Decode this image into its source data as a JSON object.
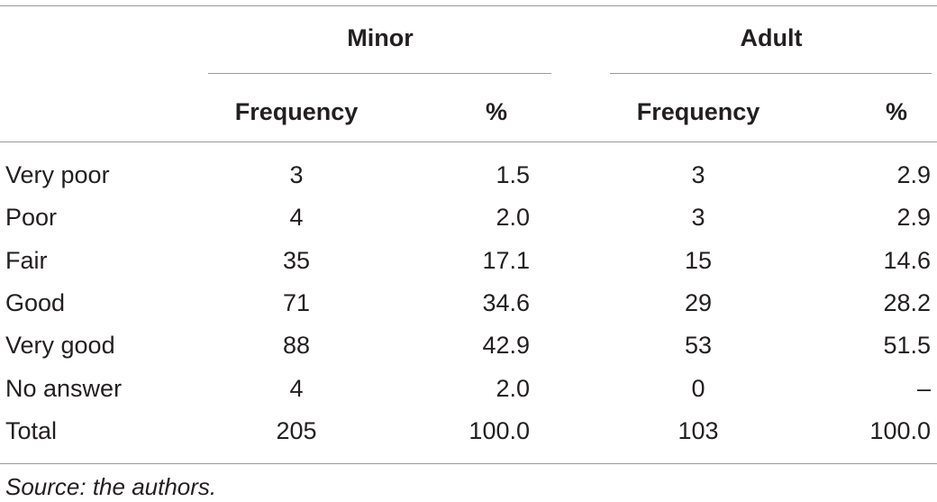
{
  "table": {
    "groups": [
      "Minor",
      "Adult"
    ],
    "columns": [
      "Frequency",
      "%",
      "Frequency",
      "%"
    ],
    "rows": [
      {
        "label": "Very poor",
        "values": [
          "3",
          "1.5",
          "3",
          "2.9"
        ]
      },
      {
        "label": "Poor",
        "values": [
          "4",
          "2.0",
          "3",
          "2.9"
        ]
      },
      {
        "label": "Fair",
        "values": [
          "35",
          "17.1",
          "15",
          "14.6"
        ]
      },
      {
        "label": "Good",
        "values": [
          "71",
          "34.6",
          "29",
          "28.2"
        ]
      },
      {
        "label": "Very good",
        "values": [
          "88",
          "42.9",
          "53",
          "51.5"
        ]
      },
      {
        "label": "No answer",
        "values": [
          "4",
          "2.0",
          "0",
          "–"
        ]
      },
      {
        "label": "Total",
        "values": [
          "205",
          "100.0",
          "103",
          "100.0"
        ]
      }
    ],
    "source": "Source: the authors."
  }
}
